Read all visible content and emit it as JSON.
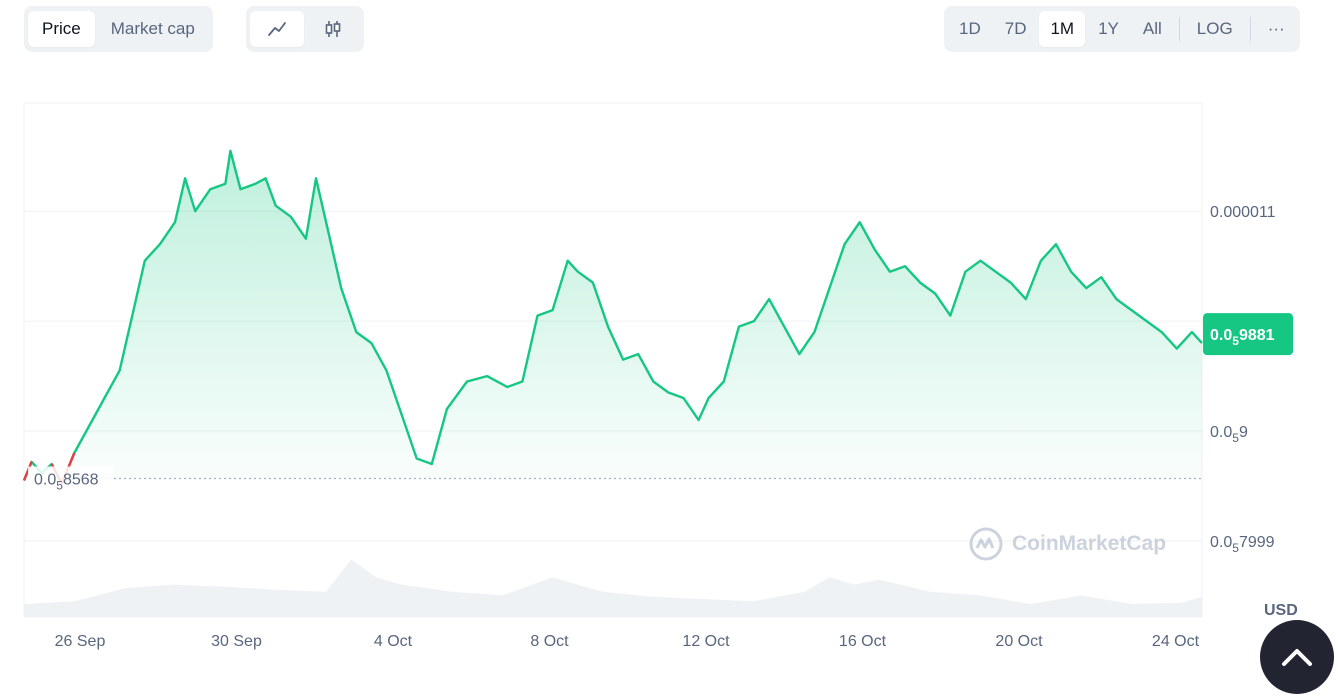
{
  "metric_tabs": [
    {
      "label": "Price",
      "active": true
    },
    {
      "label": "Market cap",
      "active": false
    }
  ],
  "view_icons": [
    {
      "icon": "line-chart-icon",
      "active": true
    },
    {
      "icon": "candlestick-icon",
      "active": false
    }
  ],
  "ranges": [
    {
      "label": "1D",
      "active": false
    },
    {
      "label": "7D",
      "active": false
    },
    {
      "label": "1M",
      "active": true
    },
    {
      "label": "1Y",
      "active": false
    },
    {
      "label": "All",
      "active": false
    }
  ],
  "log_label": "LOG",
  "more_label": "···",
  "currency": "USD",
  "watermark": "CoinMarketCap",
  "colors": {
    "up": "#16c784",
    "down": "#ea3943",
    "current_badge": "#16c784",
    "volume": "#eff2f5"
  },
  "chart_data": {
    "type": "line",
    "x_ticks": [
      "26 Sep",
      "30 Sep",
      "4 Oct",
      "8 Oct",
      "12 Oct",
      "16 Oct",
      "20 Oct",
      "24 Oct"
    ],
    "y_ticks": [
      {
        "prefix": "0.0",
        "sub": "5",
        "rest": "7999"
      },
      {
        "prefix": "0.0",
        "sub": "5",
        "rest": "9"
      },
      {
        "prefix": "0.000011",
        "sub": "",
        "rest": ""
      }
    ],
    "reference_label": {
      "prefix": "0.0",
      "sub": "5",
      "rest": "8568"
    },
    "current_label": {
      "prefix": "0.0",
      "sub": "5",
      "rest": "9881"
    },
    "grid": true,
    "price": [
      [
        0,
        8.55
      ],
      [
        0.15,
        8.72
      ],
      [
        0.35,
        8.62
      ],
      [
        0.55,
        8.7
      ],
      [
        0.75,
        8.52
      ],
      [
        1.0,
        8.8
      ],
      [
        1.3,
        9.05
      ],
      [
        1.6,
        9.3
      ],
      [
        1.9,
        9.55
      ],
      [
        2.2,
        10.15
      ],
      [
        2.4,
        10.55
      ],
      [
        2.7,
        10.7
      ],
      [
        3.0,
        10.9
      ],
      [
        3.2,
        11.3
      ],
      [
        3.4,
        11.0
      ],
      [
        3.7,
        11.2
      ],
      [
        4.0,
        11.25
      ],
      [
        4.1,
        11.55
      ],
      [
        4.3,
        11.2
      ],
      [
        4.6,
        11.25
      ],
      [
        4.8,
        11.3
      ],
      [
        5.0,
        11.05
      ],
      [
        5.3,
        10.95
      ],
      [
        5.6,
        10.75
      ],
      [
        5.8,
        11.3
      ],
      [
        6.0,
        10.9
      ],
      [
        6.3,
        10.3
      ],
      [
        6.6,
        9.9
      ],
      [
        6.9,
        9.8
      ],
      [
        7.2,
        9.55
      ],
      [
        7.5,
        9.15
      ],
      [
        7.8,
        8.75
      ],
      [
        8.1,
        8.7
      ],
      [
        8.4,
        9.2
      ],
      [
        8.8,
        9.45
      ],
      [
        9.2,
        9.5
      ],
      [
        9.6,
        9.4
      ],
      [
        9.9,
        9.45
      ],
      [
        10.2,
        10.05
      ],
      [
        10.5,
        10.1
      ],
      [
        10.8,
        10.55
      ],
      [
        11.0,
        10.45
      ],
      [
        11.3,
        10.35
      ],
      [
        11.6,
        9.95
      ],
      [
        11.9,
        9.65
      ],
      [
        12.2,
        9.7
      ],
      [
        12.5,
        9.45
      ],
      [
        12.8,
        9.35
      ],
      [
        13.1,
        9.3
      ],
      [
        13.4,
        9.1
      ],
      [
        13.6,
        9.3
      ],
      [
        13.9,
        9.45
      ],
      [
        14.2,
        9.95
      ],
      [
        14.5,
        10.0
      ],
      [
        14.8,
        10.2
      ],
      [
        15.1,
        9.95
      ],
      [
        15.4,
        9.7
      ],
      [
        15.7,
        9.9
      ],
      [
        16.0,
        10.3
      ],
      [
        16.3,
        10.7
      ],
      [
        16.6,
        10.9
      ],
      [
        16.9,
        10.65
      ],
      [
        17.2,
        10.45
      ],
      [
        17.5,
        10.5
      ],
      [
        17.8,
        10.35
      ],
      [
        18.1,
        10.25
      ],
      [
        18.4,
        10.05
      ],
      [
        18.7,
        10.45
      ],
      [
        19.0,
        10.55
      ],
      [
        19.3,
        10.45
      ],
      [
        19.6,
        10.35
      ],
      [
        19.9,
        10.2
      ],
      [
        20.2,
        10.55
      ],
      [
        20.5,
        10.7
      ],
      [
        20.8,
        10.45
      ],
      [
        21.1,
        10.3
      ],
      [
        21.4,
        10.4
      ],
      [
        21.7,
        10.2
      ],
      [
        22.0,
        10.1
      ],
      [
        22.3,
        10.0
      ],
      [
        22.6,
        9.9
      ],
      [
        22.9,
        9.75
      ],
      [
        23.2,
        9.9
      ],
      [
        23.4,
        9.8
      ]
    ],
    "volume": [
      [
        0,
        0.18
      ],
      [
        1.0,
        0.22
      ],
      [
        2.0,
        0.4
      ],
      [
        3.0,
        0.45
      ],
      [
        4.0,
        0.42
      ],
      [
        5.0,
        0.38
      ],
      [
        6.0,
        0.35
      ],
      [
        6.5,
        0.8
      ],
      [
        7.0,
        0.55
      ],
      [
        7.5,
        0.45
      ],
      [
        8.5,
        0.35
      ],
      [
        9.5,
        0.3
      ],
      [
        10.5,
        0.55
      ],
      [
        11.5,
        0.35
      ],
      [
        12.5,
        0.28
      ],
      [
        13.5,
        0.25
      ],
      [
        14.5,
        0.22
      ],
      [
        15.5,
        0.35
      ],
      [
        16.0,
        0.55
      ],
      [
        16.5,
        0.45
      ],
      [
        17.0,
        0.52
      ],
      [
        18.0,
        0.35
      ],
      [
        19.0,
        0.3
      ],
      [
        20.0,
        0.18
      ],
      [
        21.0,
        0.3
      ],
      [
        22.0,
        0.18
      ],
      [
        23.0,
        0.2
      ],
      [
        23.4,
        0.28
      ]
    ]
  }
}
